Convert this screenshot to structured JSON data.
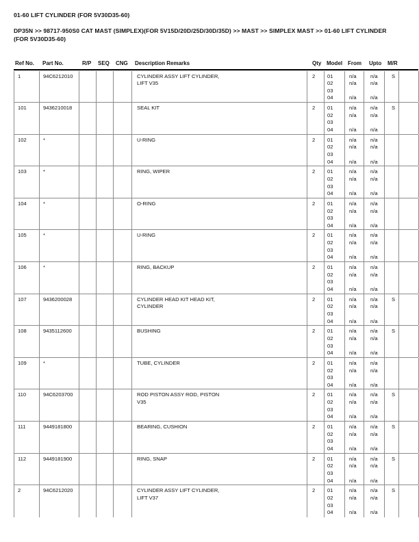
{
  "page": {
    "title": "01-60 LIFT CYLINDER (FOR 5V30D35-60)",
    "breadcrumb": {
      "line1": "DP35N >> 98717-950S0 CAT MAST (SIMPLEX)(FOR 5V15D/20D/25D/30D/35D) >> MAST >> SIMPLEX MAST >> 01-60 LIFT CYLINDER",
      "line2": "(FOR 5V30D35-60)"
    }
  },
  "table": {
    "columns": [
      "Ref No.",
      "Part No.",
      "R/P",
      "SEQ",
      "CNG",
      "Description Remarks",
      "Qty",
      "Model",
      "From",
      "Upto",
      "M/R",
      ""
    ],
    "rows": [
      {
        "ref": "1",
        "part": "94C6212010",
        "rp": "",
        "seq": "",
        "cng": "",
        "desc": [
          "CYLINDER ASSY LIFT CYLINDER,",
          "LIFT V35"
        ],
        "qty": "2",
        "models": [
          "01",
          "02",
          "03",
          "04"
        ],
        "from": [
          "n/a",
          "n/a",
          "",
          "n/a"
        ],
        "upto": [
          "n/a",
          "n/a",
          "",
          "n/a"
        ],
        "mr": "S"
      },
      {
        "ref": "101",
        "part": "9436210018",
        "rp": "",
        "seq": "",
        "cng": "",
        "desc": [
          "SEAL KIT"
        ],
        "qty": "2",
        "models": [
          "01",
          "02",
          "03",
          "04"
        ],
        "from": [
          "n/a",
          "n/a",
          "",
          "n/a"
        ],
        "upto": [
          "n/a",
          "n/a",
          "",
          "n/a"
        ],
        "mr": "S"
      },
      {
        "ref": "102",
        "part": "*",
        "rp": "",
        "seq": "",
        "cng": "",
        "desc": [
          "U-RING"
        ],
        "qty": "2",
        "models": [
          "01",
          "02",
          "03",
          "04"
        ],
        "from": [
          "n/a",
          "n/a",
          "",
          "n/a"
        ],
        "upto": [
          "n/a",
          "n/a",
          "",
          "n/a"
        ],
        "mr": ""
      },
      {
        "ref": "103",
        "part": "*",
        "rp": "",
        "seq": "",
        "cng": "",
        "desc": [
          "RING, WIPER"
        ],
        "qty": "2",
        "models": [
          "01",
          "02",
          "03",
          "04"
        ],
        "from": [
          "n/a",
          "n/a",
          "",
          "n/a"
        ],
        "upto": [
          "n/a",
          "n/a",
          "",
          "n/a"
        ],
        "mr": ""
      },
      {
        "ref": "104",
        "part": "*",
        "rp": "",
        "seq": "",
        "cng": "",
        "desc": [
          "O-RING"
        ],
        "qty": "2",
        "models": [
          "01",
          "02",
          "03",
          "04"
        ],
        "from": [
          "n/a",
          "n/a",
          "",
          "n/a"
        ],
        "upto": [
          "n/a",
          "n/a",
          "",
          "n/a"
        ],
        "mr": ""
      },
      {
        "ref": "105",
        "part": "*",
        "rp": "",
        "seq": "",
        "cng": "",
        "desc": [
          "U-RING"
        ],
        "qty": "2",
        "models": [
          "01",
          "02",
          "03",
          "04"
        ],
        "from": [
          "n/a",
          "n/a",
          "",
          "n/a"
        ],
        "upto": [
          "n/a",
          "n/a",
          "",
          "n/a"
        ],
        "mr": ""
      },
      {
        "ref": "106",
        "part": "*",
        "rp": "",
        "seq": "",
        "cng": "",
        "desc": [
          "RING, BACKUP"
        ],
        "qty": "2",
        "models": [
          "01",
          "02",
          "03",
          "04"
        ],
        "from": [
          "n/a",
          "n/a",
          "",
          "n/a"
        ],
        "upto": [
          "n/a",
          "n/a",
          "",
          "n/a"
        ],
        "mr": ""
      },
      {
        "ref": "107",
        "part": "9436200028",
        "rp": "",
        "seq": "",
        "cng": "",
        "desc": [
          "CYLINDER HEAD KIT HEAD KIT,",
          "CYLINDER"
        ],
        "qty": "2",
        "models": [
          "01",
          "02",
          "03",
          "04"
        ],
        "from": [
          "n/a",
          "n/a",
          "",
          "n/a"
        ],
        "upto": [
          "n/a",
          "n/a",
          "",
          "n/a"
        ],
        "mr": "S"
      },
      {
        "ref": "108",
        "part": "9435112600",
        "rp": "",
        "seq": "",
        "cng": "",
        "desc": [
          "BUSHING"
        ],
        "qty": "2",
        "models": [
          "01",
          "02",
          "03",
          "04"
        ],
        "from": [
          "n/a",
          "n/a",
          "",
          "n/a"
        ],
        "upto": [
          "n/a",
          "n/a",
          "",
          "n/a"
        ],
        "mr": "S"
      },
      {
        "ref": "109",
        "part": "*",
        "rp": "",
        "seq": "",
        "cng": "",
        "desc": [
          "TUBE, CYLINDER"
        ],
        "qty": "2",
        "models": [
          "01",
          "02",
          "03",
          "04"
        ],
        "from": [
          "n/a",
          "n/a",
          "",
          "n/a"
        ],
        "upto": [
          "n/a",
          "n/a",
          "",
          "n/a"
        ],
        "mr": ""
      },
      {
        "ref": "110",
        "part": "94C6203700",
        "rp": "",
        "seq": "",
        "cng": "",
        "desc": [
          "ROD PISTON ASSY ROD, PISTON",
          "V35"
        ],
        "qty": "2",
        "models": [
          "01",
          "02",
          "03",
          "04"
        ],
        "from": [
          "n/a",
          "n/a",
          "",
          "n/a"
        ],
        "upto": [
          "n/a",
          "n/a",
          "",
          "n/a"
        ],
        "mr": "S"
      },
      {
        "ref": "111",
        "part": "9449181800",
        "rp": "",
        "seq": "",
        "cng": "",
        "desc": [
          "BEARING, CUSHION"
        ],
        "qty": "2",
        "models": [
          "01",
          "02",
          "03",
          "04"
        ],
        "from": [
          "n/a",
          "n/a",
          "",
          "n/a"
        ],
        "upto": [
          "n/a",
          "n/a",
          "",
          "n/a"
        ],
        "mr": "S"
      },
      {
        "ref": "112",
        "part": "9449181900",
        "rp": "",
        "seq": "",
        "cng": "",
        "desc": [
          "RING, SNAP"
        ],
        "qty": "2",
        "models": [
          "01",
          "02",
          "03",
          "04"
        ],
        "from": [
          "n/a",
          "n/a",
          "",
          "n/a"
        ],
        "upto": [
          "n/a",
          "n/a",
          "",
          "n/a"
        ],
        "mr": "S"
      },
      {
        "ref": "2",
        "part": "94C6212020",
        "rp": "",
        "seq": "",
        "cng": "",
        "desc": [
          "CYLINDER ASSY LIFT CYLINDER,",
          "LIFT V37"
        ],
        "qty": "2",
        "models": [
          "01",
          "02",
          "03",
          "04"
        ],
        "from": [
          "n/a",
          "n/a",
          "",
          "n/a"
        ],
        "upto": [
          "n/a",
          "n/a",
          "",
          "n/a"
        ],
        "mr": "S"
      }
    ]
  }
}
